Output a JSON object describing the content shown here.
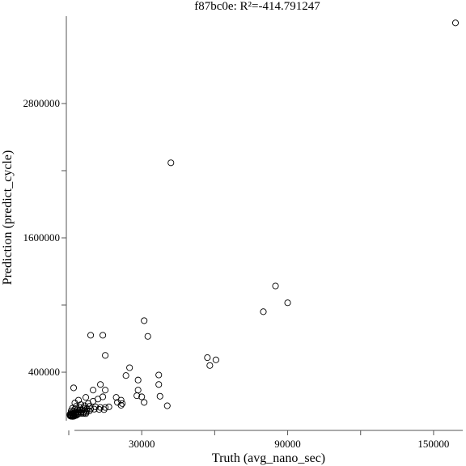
{
  "chart_data": {
    "type": "scatter",
    "title": "f87bc0e: R²=-414.791247",
    "xlabel": "Truth (avg_nano_sec)",
    "ylabel": "Prediction (predict_cycle)",
    "xlim": [
      -999,
      162000
    ],
    "ylim": [
      -120000,
      3580000
    ],
    "x_ticks": [
      0,
      30000,
      60000,
      90000,
      120000,
      150000
    ],
    "x_tick_labels": [
      "",
      "30000",
      "",
      "90000",
      "",
      "150000"
    ],
    "y_ticks": [
      400000,
      1000000,
      1600000,
      2200000,
      2800000
    ],
    "y_tick_labels": [
      "400000",
      "",
      "1600000",
      "",
      "2800000"
    ],
    "grid": false,
    "legend": "none",
    "points": [
      [
        159000,
        3520000
      ],
      [
        42000,
        2270000
      ],
      [
        85000,
        1170000
      ],
      [
        90000,
        1020000
      ],
      [
        80000,
        940000
      ],
      [
        31000,
        860000
      ],
      [
        32500,
        720000
      ],
      [
        9000,
        730000
      ],
      [
        14000,
        730000
      ],
      [
        15000,
        550000
      ],
      [
        57000,
        530000
      ],
      [
        60500,
        510000
      ],
      [
        58000,
        460000
      ],
      [
        25000,
        440000
      ],
      [
        23500,
        370000
      ],
      [
        37000,
        375000
      ],
      [
        28500,
        330000
      ],
      [
        37000,
        290000
      ],
      [
        10000,
        240000
      ],
      [
        15000,
        240000
      ],
      [
        2000,
        260000
      ],
      [
        28500,
        240000
      ],
      [
        28000,
        190000
      ],
      [
        37500,
        185000
      ],
      [
        30000,
        180000
      ],
      [
        7000,
        175000
      ],
      [
        19500,
        175000
      ],
      [
        21500,
        150000
      ],
      [
        31000,
        130000
      ],
      [
        40500,
        100000
      ],
      [
        13000,
        290000
      ],
      [
        14000,
        180000
      ],
      [
        12000,
        160000
      ],
      [
        10000,
        140000
      ],
      [
        8000,
        120000
      ],
      [
        5000,
        110000
      ],
      [
        6500,
        100000
      ],
      [
        8500,
        95000
      ],
      [
        11000,
        90000
      ],
      [
        13000,
        85000
      ],
      [
        15000,
        85000
      ],
      [
        16500,
        90000
      ],
      [
        20000,
        130000
      ],
      [
        21500,
        105000
      ],
      [
        22000,
        120000
      ],
      [
        2500,
        125000
      ],
      [
        4000,
        150000
      ],
      [
        3000,
        95000
      ],
      [
        4500,
        85000
      ],
      [
        6000,
        80000
      ],
      [
        7500,
        75000
      ],
      [
        9000,
        72000
      ],
      [
        10500,
        70000
      ],
      [
        12500,
        68000
      ],
      [
        14500,
        66000
      ],
      [
        1500,
        78000
      ],
      [
        2500,
        70000
      ],
      [
        3500,
        65000
      ],
      [
        4500,
        62000
      ],
      [
        5500,
        60000
      ],
      [
        6500,
        58000
      ],
      [
        7500,
        56000
      ],
      [
        8500,
        54000
      ],
      [
        1000,
        55000
      ],
      [
        2000,
        50000
      ],
      [
        3000,
        47000
      ],
      [
        4000,
        45000
      ],
      [
        5000,
        43000
      ],
      [
        6000,
        42000
      ],
      [
        7000,
        41000
      ],
      [
        1000,
        38000
      ],
      [
        2000,
        36000
      ],
      [
        3000,
        34000
      ],
      [
        4000,
        33000
      ],
      [
        5000,
        32000
      ],
      [
        6000,
        31000
      ],
      [
        7000,
        30000
      ],
      [
        1500,
        28000
      ],
      [
        2500,
        27000
      ],
      [
        3500,
        26000
      ],
      [
        500,
        24000
      ],
      [
        1500,
        22000
      ],
      [
        2500,
        21000
      ],
      [
        3500,
        20000
      ],
      [
        500,
        18000
      ],
      [
        1000,
        16000
      ],
      [
        2000,
        15000
      ],
      [
        3000,
        14000
      ],
      [
        800,
        12000
      ],
      [
        1800,
        11000
      ],
      [
        600,
        9000
      ],
      [
        1200,
        8000
      ],
      [
        2200,
        7000
      ],
      [
        1000,
        6000
      ],
      [
        1600,
        5000
      ]
    ]
  }
}
